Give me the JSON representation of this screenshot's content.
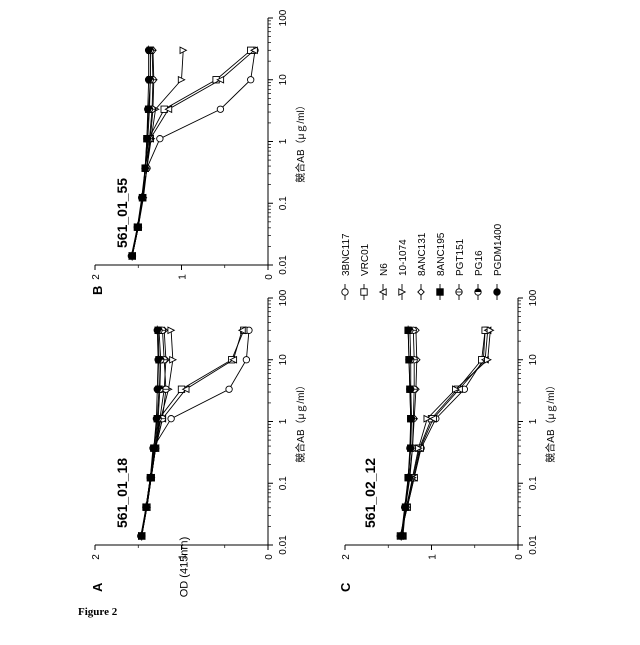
{
  "figure_caption": "Figure 2",
  "legend": {
    "entries": [
      "3BNC117",
      "VRC01",
      "N6",
      "10-1074",
      "8ANC131",
      "8ANC195",
      "PGT151",
      "PG16",
      "PGDM1400"
    ]
  },
  "shared_axes": {
    "xlabel": "競合AB（μｇ/ml）",
    "ylabel": "OD (415nm)",
    "x_ticks": [
      "0.01",
      "0.1",
      "1",
      "10",
      "100"
    ],
    "y_ticks": [
      "0",
      "1",
      "2"
    ]
  },
  "chart_data": [
    {
      "type": "line",
      "panel_letter": "A",
      "title": "561_01_18",
      "xlabel": "競合AB（μｇ/ml）",
      "ylabel": "OD (415nm)",
      "x_scale": "log",
      "xlim": [
        0.01,
        100
      ],
      "ylim": [
        0,
        2
      ],
      "x": [
        0.014,
        0.041,
        0.123,
        0.37,
        1.11,
        3.33,
        10,
        30
      ],
      "series": [
        {
          "name": "3BNC117",
          "marker": "circle",
          "values": [
            1.47,
            1.4,
            1.36,
            1.33,
            1.12,
            0.45,
            0.25,
            0.22
          ]
        },
        {
          "name": "VRC01",
          "marker": "square",
          "values": [
            1.46,
            1.4,
            1.35,
            1.3,
            1.26,
            1.0,
            0.42,
            0.28
          ]
        },
        {
          "name": "N6",
          "marker": "triangle-left",
          "values": [
            1.46,
            1.4,
            1.35,
            1.3,
            1.22,
            0.95,
            0.4,
            0.3
          ]
        },
        {
          "name": "10-1074",
          "marker": "triangle-right",
          "values": [
            1.46,
            1.4,
            1.35,
            1.3,
            1.24,
            1.15,
            1.1,
            1.12
          ]
        },
        {
          "name": "8ANC131",
          "marker": "diamond",
          "values": [
            1.46,
            1.4,
            1.35,
            1.3,
            1.25,
            1.2,
            1.18,
            1.2
          ]
        },
        {
          "name": "8ANC195",
          "marker": "square-filled",
          "values": [
            1.46,
            1.41,
            1.36,
            1.32,
            1.28,
            1.26,
            1.26,
            1.27
          ]
        },
        {
          "name": "PGT151",
          "marker": "circle-cross",
          "values": [
            1.47,
            1.41,
            1.36,
            1.3,
            1.22,
            1.18,
            1.2,
            1.22
          ]
        },
        {
          "name": "PG16",
          "marker": "circle-half",
          "values": [
            1.46,
            1.41,
            1.36,
            1.31,
            1.27,
            1.25,
            1.24,
            1.26
          ]
        },
        {
          "name": "PGDM1400",
          "marker": "circle-filled-cross",
          "values": [
            1.46,
            1.41,
            1.36,
            1.32,
            1.29,
            1.28,
            1.27,
            1.28
          ]
        }
      ]
    },
    {
      "type": "line",
      "panel_letter": "B",
      "title": "561_01_55",
      "xlabel": "競合AB（μｇ/ml）",
      "ylabel": "OD (415nm)",
      "x_scale": "log",
      "xlim": [
        0.01,
        100
      ],
      "ylim": [
        0,
        2
      ],
      "x": [
        0.014,
        0.041,
        0.123,
        0.37,
        1.11,
        3.33,
        10,
        30
      ],
      "series": [
        {
          "name": "3BNC117",
          "marker": "circle",
          "values": [
            1.57,
            1.5,
            1.45,
            1.4,
            1.25,
            0.55,
            0.2,
            0.15
          ]
        },
        {
          "name": "VRC01",
          "marker": "square",
          "values": [
            1.57,
            1.5,
            1.45,
            1.42,
            1.38,
            1.2,
            0.6,
            0.2
          ]
        },
        {
          "name": "N6",
          "marker": "triangle-left",
          "values": [
            1.57,
            1.5,
            1.45,
            1.42,
            1.36,
            1.15,
            0.55,
            0.16
          ]
        },
        {
          "name": "10-1074",
          "marker": "triangle-right",
          "values": [
            1.57,
            1.5,
            1.45,
            1.4,
            1.35,
            1.3,
            1.0,
            0.98
          ]
        },
        {
          "name": "8ANC131",
          "marker": "diamond",
          "values": [
            1.57,
            1.5,
            1.44,
            1.4,
            1.36,
            1.33,
            1.32,
            1.33
          ]
        },
        {
          "name": "8ANC195",
          "marker": "square-filled",
          "values": [
            1.57,
            1.51,
            1.45,
            1.42,
            1.4,
            1.38,
            1.36,
            1.36
          ]
        },
        {
          "name": "PGT151",
          "marker": "circle-cross",
          "values": [
            1.58,
            1.51,
            1.45,
            1.4,
            1.37,
            1.34,
            1.33,
            1.34
          ]
        },
        {
          "name": "PG16",
          "marker": "circle-half",
          "values": [
            1.57,
            1.5,
            1.45,
            1.42,
            1.39,
            1.37,
            1.36,
            1.36
          ]
        },
        {
          "name": "PGDM1400",
          "marker": "circle-filled-cross",
          "values": [
            1.57,
            1.51,
            1.46,
            1.42,
            1.4,
            1.39,
            1.38,
            1.38
          ]
        }
      ]
    },
    {
      "type": "line",
      "panel_letter": "C",
      "title": "561_02_12",
      "xlabel": "競合AB（μｇ/ml）",
      "ylabel": "OD (415nm)",
      "x_scale": "log",
      "xlim": [
        0.01,
        100
      ],
      "ylim": [
        0,
        2
      ],
      "x": [
        0.014,
        0.041,
        0.123,
        0.37,
        1.11,
        3.33,
        10,
        30
      ],
      "series": [
        {
          "name": "3BNC117",
          "marker": "circle",
          "values": [
            1.36,
            1.28,
            1.2,
            1.12,
            0.95,
            0.62,
            0.4,
            0.38
          ]
        },
        {
          "name": "VRC01",
          "marker": "square",
          "values": [
            1.36,
            1.29,
            1.21,
            1.14,
            1.0,
            0.7,
            0.42,
            0.38
          ]
        },
        {
          "name": "N6",
          "marker": "triangle-left",
          "values": [
            1.36,
            1.28,
            1.2,
            1.13,
            0.98,
            0.68,
            0.38,
            0.35
          ]
        },
        {
          "name": "10-1074",
          "marker": "triangle-right",
          "values": [
            1.35,
            1.29,
            1.22,
            1.15,
            1.05,
            0.72,
            0.35,
            0.32
          ]
        },
        {
          "name": "8ANC131",
          "marker": "diamond",
          "values": [
            1.35,
            1.3,
            1.25,
            1.22,
            1.2,
            1.18,
            1.17,
            1.18
          ]
        },
        {
          "name": "8ANC195",
          "marker": "square-filled",
          "values": [
            1.33,
            1.3,
            1.27,
            1.24,
            1.24,
            1.25,
            1.26,
            1.27
          ]
        },
        {
          "name": "PGT151",
          "marker": "circle-cross",
          "values": [
            1.34,
            1.3,
            1.26,
            1.22,
            1.21,
            1.2,
            1.2,
            1.21
          ]
        },
        {
          "name": "PG16",
          "marker": "circle-half",
          "values": [
            1.35,
            1.3,
            1.27,
            1.24,
            1.23,
            1.24,
            1.24,
            1.25
          ]
        },
        {
          "name": "PGDM1400",
          "marker": "circle-filled-cross",
          "values": [
            1.35,
            1.31,
            1.27,
            1.25,
            1.24,
            1.25,
            1.26,
            1.27
          ]
        }
      ]
    }
  ]
}
